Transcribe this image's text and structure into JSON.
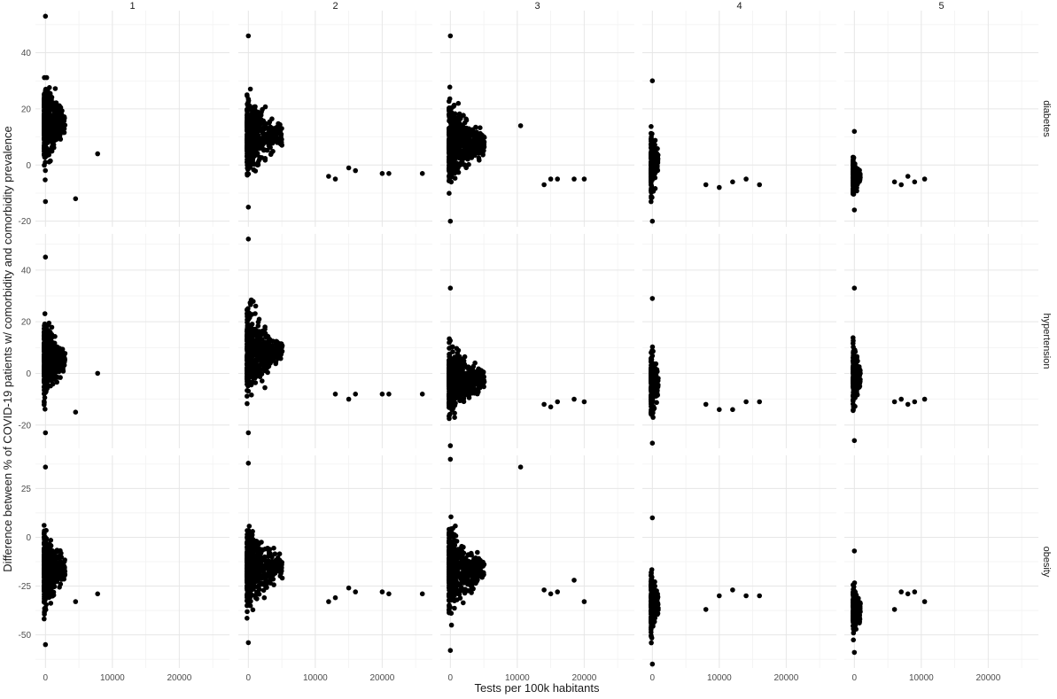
{
  "chart_data": {
    "type": "scatter",
    "xlabel": "Tests per 100k habitants",
    "ylabel": "Difference between % of COVID-19 patients w/ comorbidity and comorbidity prevalence",
    "columns": [
      "1",
      "2",
      "3",
      "4",
      "5"
    ],
    "rows": [
      "diabetes",
      "hypertension",
      "obesity"
    ],
    "x_ticks": [
      0,
      10000,
      20000
    ],
    "x_tick_labels": [
      "0",
      "10000",
      "20000"
    ],
    "xlim": [
      -1500,
      27500
    ],
    "grid": true,
    "point_color": "#000000",
    "panels_by_row": [
      {
        "row": "diabetes",
        "ylim": [
          -22,
          55
        ],
        "y_ticks": [
          -20,
          0,
          20,
          40
        ],
        "y_tick_labels": [
          "-20",
          "0",
          "20",
          "40"
        ]
      },
      {
        "row": "hypertension",
        "ylim": [
          -29,
          54
        ],
        "y_ticks": [
          -20,
          0,
          20,
          40
        ],
        "y_tick_labels": [
          "-20",
          "0",
          "20",
          "40"
        ]
      },
      {
        "row": "obesity",
        "ylim": [
          -67,
          42
        ],
        "y_ticks": [
          -50,
          -25,
          0,
          25
        ],
        "y_tick_labels": [
          "-50",
          "-25",
          "0",
          "25"
        ]
      }
    ],
    "panel_summaries": [
      {
        "column": "1",
        "row": "diabetes",
        "y_range_at_x0": [
          -13,
          53
        ],
        "max_x": 7800,
        "outliers": [
          [
            7800,
            4
          ],
          [
            4500,
            -12
          ]
        ]
      },
      {
        "column": "2",
        "row": "diabetes",
        "y_range_at_x0": [
          -15,
          46
        ],
        "max_x": 26000,
        "outliers": [
          [
            26000,
            -3
          ],
          [
            21000,
            -3
          ],
          [
            20000,
            -3
          ],
          [
            16000,
            -2
          ],
          [
            15000,
            -1
          ],
          [
            13000,
            -5
          ],
          [
            12000,
            -4
          ]
        ]
      },
      {
        "column": "3",
        "row": "diabetes",
        "y_range_at_x0": [
          -20,
          46
        ],
        "max_x": 20000,
        "outliers": [
          [
            20000,
            -5
          ],
          [
            18500,
            -5
          ],
          [
            16000,
            -5
          ],
          [
            15000,
            -5
          ],
          [
            14000,
            -7
          ],
          [
            10500,
            14
          ]
        ]
      },
      {
        "column": "4",
        "row": "diabetes",
        "y_range_at_x0": [
          -20,
          30
        ],
        "max_x": 16000,
        "outliers": [
          [
            16000,
            -7
          ],
          [
            14000,
            -5
          ],
          [
            12000,
            -6
          ],
          [
            10000,
            -8
          ],
          [
            8000,
            -7
          ]
        ]
      },
      {
        "column": "5",
        "row": "diabetes",
        "y_range_at_x0": [
          -16,
          12
        ],
        "max_x": 10500,
        "outliers": [
          [
            10500,
            -5
          ],
          [
            9000,
            -6
          ],
          [
            8000,
            -4
          ],
          [
            7000,
            -7
          ],
          [
            6000,
            -6
          ]
        ]
      },
      {
        "column": "1",
        "row": "hypertension",
        "y_range_at_x0": [
          -23,
          45
        ],
        "max_x": 7800,
        "outliers": [
          [
            7800,
            0
          ],
          [
            4500,
            -15
          ]
        ]
      },
      {
        "column": "2",
        "row": "hypertension",
        "y_range_at_x0": [
          -23,
          52
        ],
        "max_x": 26000,
        "outliers": [
          [
            26000,
            -8
          ],
          [
            21000,
            -8
          ],
          [
            20000,
            -8
          ],
          [
            16000,
            -8
          ],
          [
            15000,
            -10
          ],
          [
            13000,
            -8
          ]
        ]
      },
      {
        "column": "3",
        "row": "hypertension",
        "y_range_at_x0": [
          -28,
          33
        ],
        "max_x": 20000,
        "outliers": [
          [
            20000,
            -11
          ],
          [
            18500,
            -10
          ],
          [
            16000,
            -11
          ],
          [
            15000,
            -13
          ],
          [
            14000,
            -12
          ]
        ]
      },
      {
        "column": "4",
        "row": "hypertension",
        "y_range_at_x0": [
          -27,
          29
        ],
        "max_x": 16000,
        "outliers": [
          [
            16000,
            -11
          ],
          [
            14000,
            -11
          ],
          [
            12000,
            -14
          ],
          [
            10000,
            -14
          ],
          [
            8000,
            -12
          ]
        ]
      },
      {
        "column": "5",
        "row": "hypertension",
        "y_range_at_x0": [
          -26,
          33
        ],
        "max_x": 10500,
        "outliers": [
          [
            10500,
            -10
          ],
          [
            9000,
            -11
          ],
          [
            8000,
            -12
          ],
          [
            7000,
            -10
          ],
          [
            6000,
            -11
          ]
        ]
      },
      {
        "column": "1",
        "row": "obesity",
        "y_range_at_x0": [
          -55,
          36
        ],
        "max_x": 7800,
        "outliers": [
          [
            7800,
            -29
          ],
          [
            4500,
            -33
          ]
        ]
      },
      {
        "column": "2",
        "row": "obesity",
        "y_range_at_x0": [
          -54,
          38
        ],
        "max_x": 26000,
        "outliers": [
          [
            26000,
            -29
          ],
          [
            21000,
            -29
          ],
          [
            20000,
            -28
          ],
          [
            16000,
            -28
          ],
          [
            15000,
            -26
          ],
          [
            13000,
            -31
          ],
          [
            12000,
            -33
          ]
        ]
      },
      {
        "column": "3",
        "row": "obesity",
        "y_range_at_x0": [
          -58,
          40
        ],
        "max_x": 20000,
        "outliers": [
          [
            20000,
            -33
          ],
          [
            18500,
            -22
          ],
          [
            16000,
            -28
          ],
          [
            15000,
            -29
          ],
          [
            14000,
            -27
          ],
          [
            10500,
            36
          ]
        ]
      },
      {
        "column": "4",
        "row": "obesity",
        "y_range_at_x0": [
          -65,
          10
        ],
        "max_x": 16000,
        "outliers": [
          [
            16000,
            -30
          ],
          [
            14000,
            -30
          ],
          [
            12000,
            -27
          ],
          [
            10000,
            -30
          ],
          [
            8000,
            -37
          ]
        ]
      },
      {
        "column": "5",
        "row": "obesity",
        "y_range_at_x0": [
          -59,
          -7
        ],
        "max_x": 10500,
        "outliers": [
          [
            10500,
            -33
          ],
          [
            9000,
            -28
          ],
          [
            8000,
            -29
          ],
          [
            7000,
            -28
          ],
          [
            6000,
            -37
          ]
        ]
      }
    ]
  }
}
